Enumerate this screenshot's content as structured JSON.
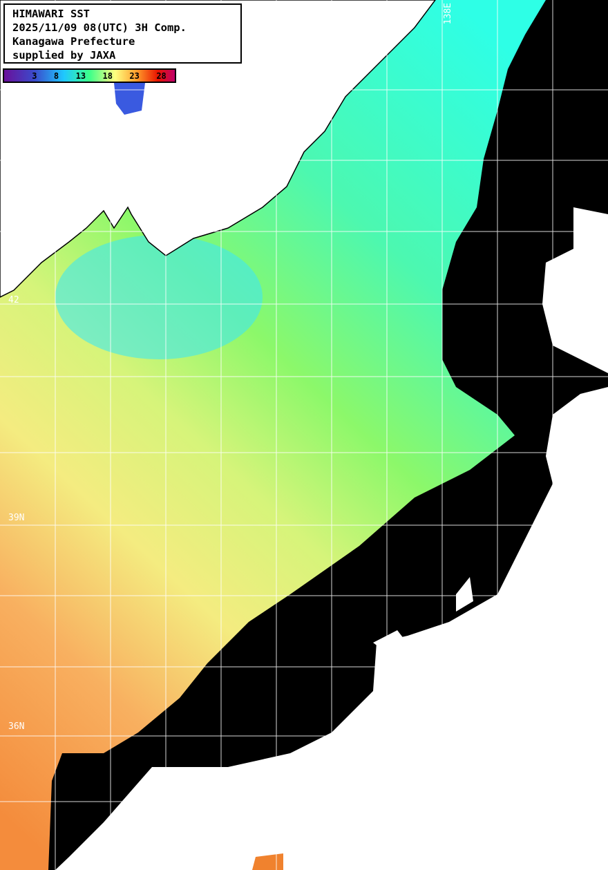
{
  "header": {
    "lines": [
      "HIMAWARI SST",
      "2025/11/09 08(UTC) 3H Comp.",
      "Kanagawa Prefecture",
      "supplied by JAXA"
    ]
  },
  "colorbar": {
    "ticks": [
      "3",
      "8",
      "13",
      "18",
      "23",
      "28"
    ],
    "colors": [
      "#6a0f9a",
      "#3a4ccc",
      "#1fc8ff",
      "#3cff8a",
      "#ffff80",
      "#ff9a2a",
      "#e81400",
      "#c0006a"
    ]
  },
  "grid_labels": {
    "lat": [
      "42",
      "39N",
      "36N"
    ],
    "lon": [
      "138E"
    ]
  },
  "map_colors": {
    "land": "#ffffff",
    "cloud_no_data": "#000000",
    "grid": "#ffffff"
  }
}
